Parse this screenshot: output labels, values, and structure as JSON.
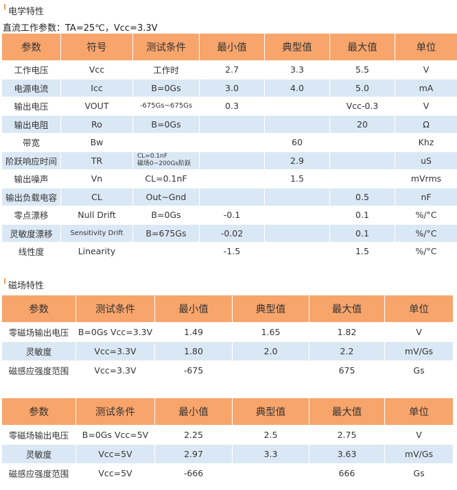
{
  "electrical": {
    "title": "电学特性",
    "subtitle": "直流工作参数：TA=25℃，Vcc=3.3V",
    "table": {
      "headers": [
        "参数",
        "符号",
        "测试条件",
        "最小值",
        "典型值",
        "最大值",
        "单位"
      ],
      "rows": [
        [
          "工作电压",
          "Vcc",
          "工作时",
          "2.7",
          "3.3",
          "5.5",
          "V"
        ],
        [
          "电源电流",
          "Icc",
          "B=0Gs",
          "3.0",
          "4.0",
          "5.0",
          "mA"
        ],
        [
          "输出电压",
          "VOUT",
          "-675Gs~675Gs",
          "0.3",
          null,
          "Vcc-0.3",
          "V"
        ],
        [
          "输出电阻",
          "Ro",
          "B=0Gs",
          null,
          null,
          "20",
          "Ω"
        ],
        [
          "带宽",
          "Bw",
          null,
          null,
          "60",
          null,
          "Khz"
        ],
        [
          "阶跃响应时间",
          "TR",
          "CL=0.1nF\n磁场0~200Gs阶跃",
          null,
          "2.9",
          null,
          "uS"
        ],
        [
          "输出噪声",
          "Vn",
          "CL=0.1nF",
          null,
          "1.5",
          null,
          "mVrms"
        ],
        [
          "输出负载电容",
          "CL",
          "Out~Gnd",
          null,
          null,
          "0.5",
          "nF"
        ],
        [
          "零点漂移",
          "Null Drift",
          "B=0Gs",
          "-0.1",
          null,
          "0.1",
          "%/°C"
        ],
        [
          "灵敏度漂移",
          "Sensitivity Drift",
          "B=675Gs",
          "-0.02",
          null,
          "0.1",
          "%/°C"
        ],
        [
          "线性度",
          "Linearity",
          null,
          "-1.5",
          null,
          "1.5",
          "%/°C"
        ]
      ]
    }
  },
  "magnetic": {
    "title": "磁场特性",
    "tables": [
      {
        "headers": [
          "参数",
          "测试条件",
          "最小值",
          "典型值",
          "最大值",
          "单位"
        ],
        "rows": [
          [
            "零磁场输出电压",
            "B=0Gs Vcc=3.3V",
            "1.49",
            "1.65",
            "1.82",
            "V"
          ],
          [
            "灵敏度",
            "Vcc=3.3V",
            "1.80",
            "2.0",
            "2.2",
            "mV/Gs"
          ],
          [
            "磁感应强度范围",
            "Vcc=3.3V",
            "-675",
            null,
            "675",
            "Gs"
          ]
        ]
      },
      {
        "headers": [
          "参数",
          "测试条件",
          "最小值",
          "典型值",
          "最大值",
          "单位"
        ],
        "rows": [
          [
            "零磁场输出电压",
            "B=0Gs Vcc=5V",
            "2.25",
            "2.5",
            "2.75",
            "V"
          ],
          [
            "灵敏度",
            "Vcc=5V",
            "2.97",
            "3.3",
            "3.63",
            "mV/Gs"
          ],
          [
            "磁感应强度范围",
            "Vcc=5V",
            "-666",
            null,
            "666",
            "Gs"
          ]
        ]
      }
    ]
  }
}
